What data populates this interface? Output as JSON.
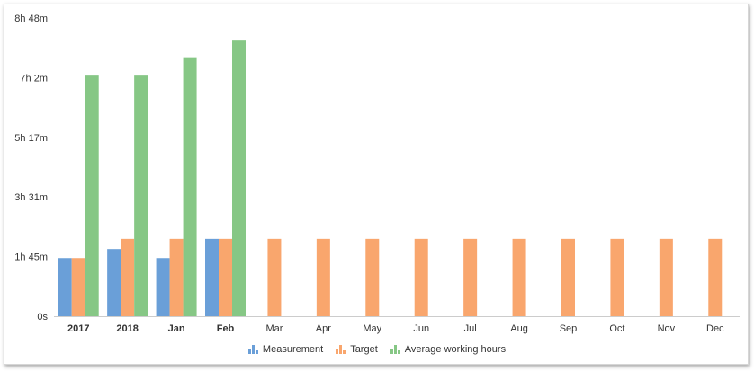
{
  "chart_data": {
    "type": "bar",
    "categories": [
      "2017",
      "2018",
      "Jan",
      "Feb",
      "Mar",
      "Apr",
      "May",
      "Jun",
      "Jul",
      "Aug",
      "Sep",
      "Oct",
      "Nov",
      "Dec"
    ],
    "y_ticks": [
      "0s",
      "1h 45m",
      "3h 31m",
      "5h 17m",
      "7h 2m",
      "8h 48m"
    ],
    "ylim_minutes": [
      0,
      528
    ],
    "ytick_values_minutes": [
      0,
      105.6,
      211.2,
      316.8,
      422.4,
      528
    ],
    "series": [
      {
        "name": "Measurement",
        "color": "#6a9fd8",
        "values": [
          103,
          119,
          103,
          137,
          null,
          null,
          null,
          null,
          null,
          null,
          null,
          null,
          null,
          null
        ]
      },
      {
        "name": "Target",
        "color": "#f9a66d",
        "values": [
          103,
          137,
          137,
          137,
          137,
          137,
          137,
          137,
          137,
          137,
          137,
          137,
          137,
          137
        ]
      },
      {
        "name": "Average working hours",
        "color": "#86c785",
        "values": [
          426,
          426,
          457,
          488,
          null,
          null,
          null,
          null,
          null,
          null,
          null,
          null,
          null,
          null
        ]
      }
    ],
    "legend_position": "bottom-center",
    "grid": false
  }
}
